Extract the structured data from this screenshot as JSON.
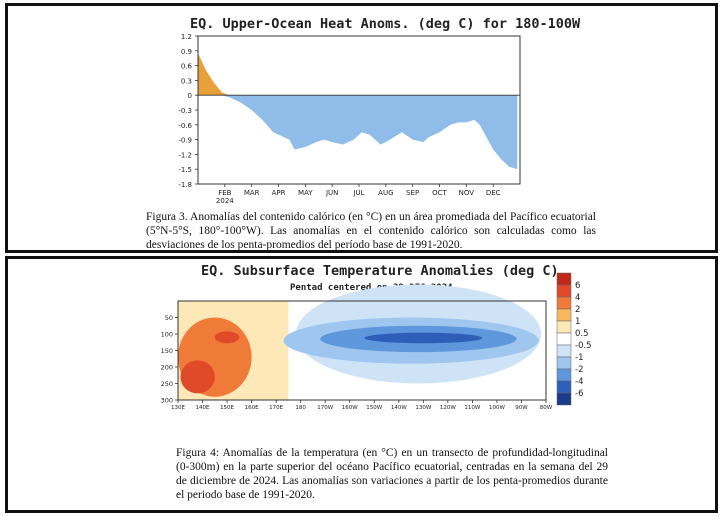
{
  "figure3": {
    "caption": "Figura 3. Anomalías del contenido calórico (en °C) en un área promediada del Pacífico ecuatorial (5°N-5°S, 180°-100°W). Las anomalías en el contenido calórico son calculadas como las desviaciones de los penta-promedios del período base de 1991-2020.",
    "chart_data": {
      "type": "area",
      "title": "EQ. Upper-Ocean Heat Anoms. (deg C) for 180-100W",
      "xlabel": "",
      "ylabel": "",
      "ylim": [
        -1.8,
        1.2
      ],
      "yticks": [
        "1.2",
        "0.9",
        "0.6",
        "0.3",
        "0",
        "-0.3",
        "-0.6",
        "-0.9",
        "-1.2",
        "-1.5",
        "-1.8"
      ],
      "xticks": [
        "FEB",
        "MAR",
        "APR",
        "MAY",
        "JUN",
        "JUL",
        "AUG",
        "SEP",
        "OCT",
        "NOV",
        "DEC"
      ],
      "xtick_positions_month": [
        1,
        2,
        3,
        4,
        5,
        6,
        7,
        8,
        9,
        10,
        11
      ],
      "year_label": "2024",
      "positive_color": "#e8a03a",
      "negative_color": "#8fbce8",
      "x": [
        0,
        0.3,
        0.6,
        0.9,
        1.2,
        1.6,
        2.0,
        2.4,
        2.8,
        3.0,
        3.4,
        3.6,
        4.0,
        4.4,
        4.7,
        5.0,
        5.4,
        5.8,
        6.1,
        6.4,
        6.8,
        7.0,
        7.3,
        7.6,
        8.0,
        8.4,
        8.6,
        9.0,
        9.4,
        9.7,
        10.0,
        10.3,
        10.5,
        10.7,
        11.0,
        11.3,
        11.6,
        11.9
      ],
      "y": [
        0.85,
        0.5,
        0.25,
        0.05,
        -0.05,
        -0.15,
        -0.3,
        -0.5,
        -0.75,
        -0.8,
        -0.9,
        -1.1,
        -1.05,
        -0.95,
        -0.9,
        -0.95,
        -1.0,
        -0.9,
        -0.75,
        -0.8,
        -1.0,
        -0.95,
        -0.85,
        -0.75,
        -0.9,
        -0.95,
        -0.85,
        -0.75,
        -0.6,
        -0.55,
        -0.55,
        -0.5,
        -0.6,
        -0.8,
        -1.1,
        -1.3,
        -1.45,
        -1.5
      ]
    }
  },
  "figure4": {
    "caption": "Figura 4: Anomalías de la temperatura (en °C) en un transecto de profundidad-longitudinal (0-300m) en la parte superior del océano Pacífico ecuatorial, centradas en la semana del 29 de diciembre de 2024. Las anomalías son variaciones a partir de los penta-promedios durante el periodo base de 1991-2020.",
    "chart_data": {
      "type": "heatmap",
      "title": "EQ. Subsurface Temperature Anomalies (deg C)",
      "subtitle": "Pentad centered on 29 DEC 2024",
      "x_labels": [
        "130E",
        "140E",
        "150E",
        "160E",
        "170E",
        "180",
        "170W",
        "160W",
        "150W",
        "140W",
        "130W",
        "120W",
        "110W",
        "100W",
        "90W",
        "80W"
      ],
      "x_range": [
        130,
        280
      ],
      "y_labels": [
        "50",
        "100",
        "150",
        "200",
        "250",
        "300"
      ],
      "y_values": [
        50,
        100,
        150,
        200,
        250,
        300
      ],
      "ylim": [
        0,
        300
      ],
      "colorbar_labels": [
        "6",
        "4",
        "2",
        "1",
        "0.5",
        "-0.5",
        "-1",
        "-2",
        "-4",
        "-6"
      ],
      "colorbar_colors": [
        "#c0281a",
        "#e04a28",
        "#f07a38",
        "#f9b860",
        "#fde8b8",
        "#ffffff",
        "#cfe3f7",
        "#9fc6ee",
        "#5e97dc",
        "#2e5fb8",
        "#1a3a8a"
      ],
      "warm_regions": [
        {
          "lon": 145,
          "depth": 170,
          "level": 2,
          "rx": 15,
          "ry": 120
        },
        {
          "lon": 138,
          "depth": 230,
          "level": 4,
          "rx": 7,
          "ry": 50
        },
        {
          "lon": 150,
          "depth": 110,
          "level": 4,
          "rx": 5,
          "ry": 18
        }
      ],
      "cold_regions": [
        {
          "lon": 225,
          "depth": 120,
          "level": -1,
          "rx": 52,
          "ry": 70
        },
        {
          "lon": 228,
          "depth": 115,
          "level": -2,
          "rx": 40,
          "ry": 40
        },
        {
          "lon": 230,
          "depth": 112,
          "level": -4,
          "rx": 24,
          "ry": 16
        }
      ]
    }
  }
}
